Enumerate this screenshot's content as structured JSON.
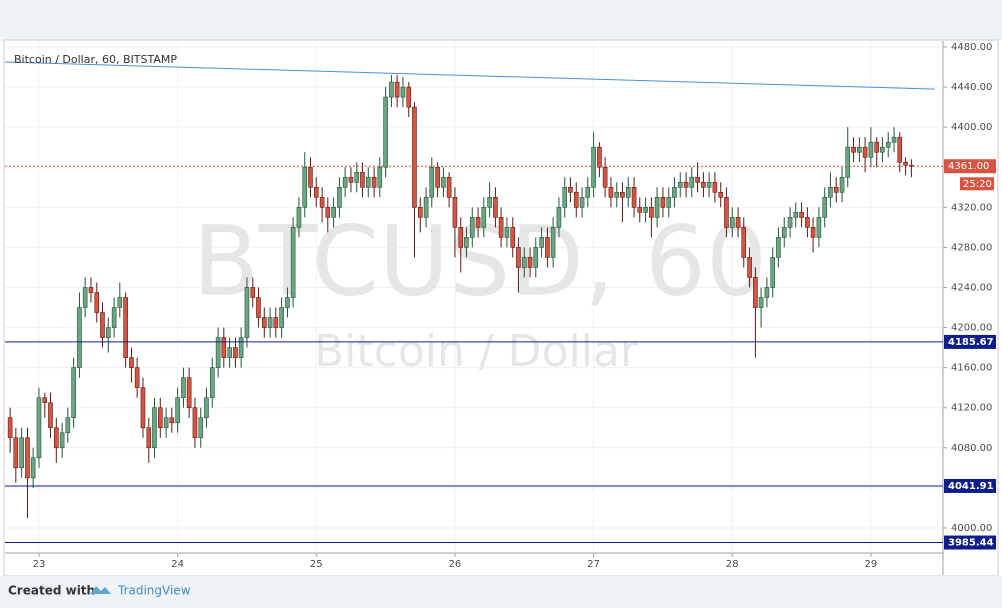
{
  "chart_data": {
    "type": "candlestick",
    "title": "Bitcoin / Dollar, 60, BITSTAMP",
    "watermark": "BTCUSD, 60",
    "watermark_subtitle": "Bitcoin / Dollar",
    "x": [
      22.792,
      22.833,
      22.875,
      22.917,
      22.958,
      23,
      23.042,
      23.083,
      23.125,
      23.167,
      23.208,
      23.25,
      23.292,
      23.333,
      23.375,
      23.417,
      23.458,
      23.5,
      23.542,
      23.583,
      23.625,
      23.667,
      23.708,
      23.75,
      23.792,
      23.833,
      23.875,
      23.917,
      23.958,
      24,
      24.042,
      24.083,
      24.125,
      24.167,
      24.208,
      24.25,
      24.292,
      24.333,
      24.375,
      24.417,
      24.458,
      24.5,
      24.542,
      24.583,
      24.625,
      24.667,
      24.708,
      24.75,
      24.792,
      24.833,
      24.875,
      24.917,
      24.958,
      25,
      25.042,
      25.083,
      25.125,
      25.167,
      25.208,
      25.25,
      25.292,
      25.333,
      25.375,
      25.417,
      25.458,
      25.5,
      25.542,
      25.583,
      25.625,
      25.667,
      25.708,
      25.75,
      25.792,
      25.833,
      25.875,
      25.917,
      25.958,
      26,
      26.042,
      26.083,
      26.125,
      26.167,
      26.208,
      26.25,
      26.292,
      26.333,
      26.375,
      26.417,
      26.458,
      26.5,
      26.542,
      26.583,
      26.625,
      26.667,
      26.708,
      26.75,
      26.792,
      26.833,
      26.875,
      26.917,
      26.958,
      27,
      27.042,
      27.083,
      27.125,
      27.167,
      27.208,
      27.25,
      27.292,
      27.333,
      27.375,
      27.417,
      27.458,
      27.5,
      27.542,
      27.583,
      27.625,
      27.667,
      27.708,
      27.75,
      27.792,
      27.833,
      27.875,
      27.917,
      27.958,
      28,
      28.042,
      28.083,
      28.125,
      28.167,
      28.208,
      28.25,
      28.292,
      28.333,
      28.375,
      28.417,
      28.458,
      28.5,
      28.542,
      28.583,
      28.625,
      28.667,
      28.708,
      28.75,
      28.792,
      28.833,
      28.875,
      28.917,
      28.958,
      29,
      29.042,
      29.083,
      29.125,
      29.167,
      29.208,
      29.25,
      29.292
    ],
    "open": [
      4110,
      4090,
      4060,
      4090,
      4050,
      4070,
      4130,
      4125,
      4100,
      4080,
      4095,
      4110,
      4160,
      4220,
      4240,
      4235,
      4215,
      4190,
      4200,
      4220,
      4230,
      4170,
      4160,
      4140,
      4100,
      4080,
      4120,
      4100,
      4110,
      4105,
      4130,
      4150,
      4120,
      4090,
      4110,
      4130,
      4160,
      4190,
      4170,
      4180,
      4170,
      4190,
      4240,
      4230,
      4210,
      4200,
      4210,
      4200,
      4220,
      4230,
      4300,
      4320,
      4360,
      4340,
      4330,
      4320,
      4310,
      4320,
      4340,
      4350,
      4345,
      4355,
      4340,
      4350,
      4340,
      4360,
      4430,
      4445,
      4430,
      4440,
      4420,
      4320,
      4310,
      4330,
      4360,
      4340,
      4350,
      4330,
      4300,
      4280,
      4290,
      4310,
      4300,
      4320,
      4330,
      4310,
      4290,
      4300,
      4280,
      4260,
      4270,
      4260,
      4280,
      4290,
      4270,
      4300,
      4320,
      4340,
      4335,
      4320,
      4330,
      4340,
      4380,
      4360,
      4340,
      4330,
      4335,
      4330,
      4340,
      4320,
      4315,
      4320,
      4310,
      4330,
      4320,
      4330,
      4340,
      4345,
      4340,
      4350,
      4345,
      4340,
      4345,
      4335,
      4330,
      4300,
      4310,
      4300,
      4270,
      4250,
      4220,
      4230,
      4240,
      4270,
      4290,
      4300,
      4310,
      4315,
      4310,
      4300,
      4290,
      4310,
      4330,
      4340,
      4335,
      4350,
      4380,
      4375,
      4380,
      4370,
      4385,
      4375,
      4380,
      4385,
      4390,
      4365,
      4362
    ],
    "high": [
      4120,
      4100,
      4100,
      4100,
      4080,
      4140,
      4135,
      4135,
      4110,
      4105,
      4120,
      4170,
      4235,
      4250,
      4250,
      4245,
      4225,
      4210,
      4230,
      4245,
      4235,
      4180,
      4170,
      4150,
      4110,
      4130,
      4130,
      4120,
      4120,
      4140,
      4160,
      4160,
      4130,
      4120,
      4140,
      4170,
      4200,
      4200,
      4190,
      4190,
      4200,
      4250,
      4250,
      4240,
      4220,
      4220,
      4220,
      4230,
      4240,
      4310,
      4330,
      4375,
      4370,
      4350,
      4340,
      4330,
      4330,
      4350,
      4360,
      4360,
      4365,
      4365,
      4360,
      4360,
      4370,
      4440,
      4452,
      4452,
      4450,
      4445,
      4425,
      4330,
      4340,
      4370,
      4365,
      4360,
      4355,
      4340,
      4310,
      4300,
      4320,
      4320,
      4330,
      4345,
      4340,
      4320,
      4310,
      4310,
      4290,
      4280,
      4280,
      4290,
      4300,
      4300,
      4310,
      4330,
      4350,
      4350,
      4345,
      4340,
      4350,
      4395,
      4385,
      4370,
      4350,
      4345,
      4345,
      4350,
      4350,
      4330,
      4330,
      4330,
      4340,
      4340,
      4340,
      4350,
      4355,
      4355,
      4360,
      4365,
      4355,
      4355,
      4355,
      4345,
      4340,
      4320,
      4320,
      4310,
      4280,
      4260,
      4240,
      4250,
      4280,
      4300,
      4310,
      4320,
      4325,
      4325,
      4320,
      4310,
      4320,
      4340,
      4355,
      4350,
      4360,
      4400,
      4390,
      4390,
      4390,
      4400,
      4390,
      4390,
      4395,
      4400,
      4395,
      4370,
      4368
    ],
    "low": [
      4075,
      4045,
      4050,
      4010,
      4040,
      4060,
      4110,
      4090,
      4065,
      4070,
      4085,
      4100,
      4150,
      4210,
      4225,
      4205,
      4180,
      4175,
      4190,
      4210,
      4160,
      4145,
      4130,
      4090,
      4065,
      4070,
      4090,
      4090,
      4095,
      4095,
      4120,
      4110,
      4080,
      4080,
      4100,
      4120,
      4150,
      4160,
      4160,
      4160,
      4160,
      4180,
      4220,
      4200,
      4190,
      4190,
      4190,
      4190,
      4210,
      4220,
      4290,
      4310,
      4330,
      4320,
      4305,
      4295,
      4300,
      4310,
      4330,
      4335,
      4335,
      4330,
      4330,
      4330,
      4330,
      4350,
      4420,
      4420,
      4420,
      4410,
      4270,
      4295,
      4300,
      4320,
      4330,
      4330,
      4320,
      4270,
      4255,
      4270,
      4280,
      4290,
      4290,
      4310,
      4300,
      4280,
      4280,
      4270,
      4235,
      4250,
      4250,
      4250,
      4270,
      4260,
      4260,
      4290,
      4310,
      4325,
      4310,
      4310,
      4320,
      4330,
      4350,
      4330,
      4320,
      4320,
      4305,
      4320,
      4310,
      4305,
      4305,
      4290,
      4300,
      4310,
      4310,
      4320,
      4330,
      4330,
      4330,
      4335,
      4330,
      4330,
      4325,
      4320,
      4290,
      4290,
      4290,
      4260,
      4240,
      4170,
      4200,
      4220,
      4230,
      4260,
      4280,
      4290,
      4300,
      4300,
      4290,
      4275,
      4280,
      4300,
      4320,
      4325,
      4325,
      4340,
      4365,
      4365,
      4355,
      4360,
      4360,
      4365,
      4370,
      4375,
      4355,
      4352,
      4350
    ],
    "close": [
      4090,
      4060,
      4090,
      4050,
      4070,
      4130,
      4125,
      4100,
      4080,
      4095,
      4110,
      4160,
      4220,
      4240,
      4235,
      4215,
      4190,
      4200,
      4220,
      4230,
      4170,
      4160,
      4140,
      4100,
      4080,
      4120,
      4100,
      4110,
      4105,
      4130,
      4150,
      4120,
      4090,
      4110,
      4130,
      4160,
      4190,
      4170,
      4180,
      4170,
      4190,
      4240,
      4230,
      4210,
      4200,
      4210,
      4200,
      4220,
      4230,
      4300,
      4320,
      4360,
      4340,
      4330,
      4320,
      4310,
      4320,
      4340,
      4350,
      4345,
      4355,
      4340,
      4350,
      4340,
      4360,
      4430,
      4445,
      4430,
      4440,
      4420,
      4320,
      4310,
      4330,
      4360,
      4340,
      4350,
      4330,
      4300,
      4280,
      4290,
      4310,
      4300,
      4320,
      4330,
      4310,
      4290,
      4300,
      4280,
      4260,
      4270,
      4260,
      4280,
      4290,
      4270,
      4300,
      4320,
      4340,
      4335,
      4320,
      4330,
      4340,
      4380,
      4360,
      4340,
      4330,
      4335,
      4330,
      4340,
      4320,
      4315,
      4320,
      4310,
      4330,
      4320,
      4330,
      4340,
      4345,
      4340,
      4350,
      4345,
      4340,
      4345,
      4335,
      4330,
      4300,
      4310,
      4300,
      4270,
      4250,
      4220,
      4230,
      4240,
      4270,
      4290,
      4300,
      4310,
      4315,
      4310,
      4300,
      4290,
      4310,
      4330,
      4340,
      4335,
      4350,
      4380,
      4375,
      4380,
      4370,
      4385,
      4375,
      4380,
      4385,
      4390,
      4365,
      4362,
      4361
    ],
    "up_color": "#6ba583",
    "up_border": "#225437",
    "down_color": "#d75442",
    "down_border": "#5b1a13",
    "xlim": [
      22.755,
      29.52
    ],
    "xticks": [
      23,
      24,
      25,
      26,
      27,
      28,
      29
    ],
    "ylim": [
      3975,
      4486
    ],
    "yticks": [
      {
        "value": 4000,
        "label": "4000.00"
      },
      {
        "value": 4040,
        "label": "4040.00"
      },
      {
        "value": 4080,
        "label": "4080.00"
      },
      {
        "value": 4120,
        "label": "4120.00"
      },
      {
        "value": 4160,
        "label": "4160.00"
      },
      {
        "value": 4200,
        "label": "4200.00"
      },
      {
        "value": 4240,
        "label": "4240.00"
      },
      {
        "value": 4280,
        "label": "4280.00"
      },
      {
        "value": 4320,
        "label": "4320.00"
      },
      {
        "value": 4360,
        "label": "4360.00"
      },
      {
        "value": 4400,
        "label": "4400.00"
      },
      {
        "value": 4440,
        "label": "4440.00"
      },
      {
        "value": 4480,
        "label": "4480.00"
      }
    ],
    "grid": true,
    "hlines": [
      4185.67,
      4041.91,
      3985.44
    ],
    "hline_color": "#0d1e8a",
    "last_price": {
      "value": 4361,
      "label": "4361.00"
    },
    "last_price_color": "#d75442",
    "countdown": "25:20",
    "trendline": {
      "x": [
        22.755,
        29.46
      ],
      "y": [
        4465,
        4438
      ],
      "color": "#4a90d9"
    },
    "footer_text": "Created with",
    "footer_brand": "TradingView"
  }
}
